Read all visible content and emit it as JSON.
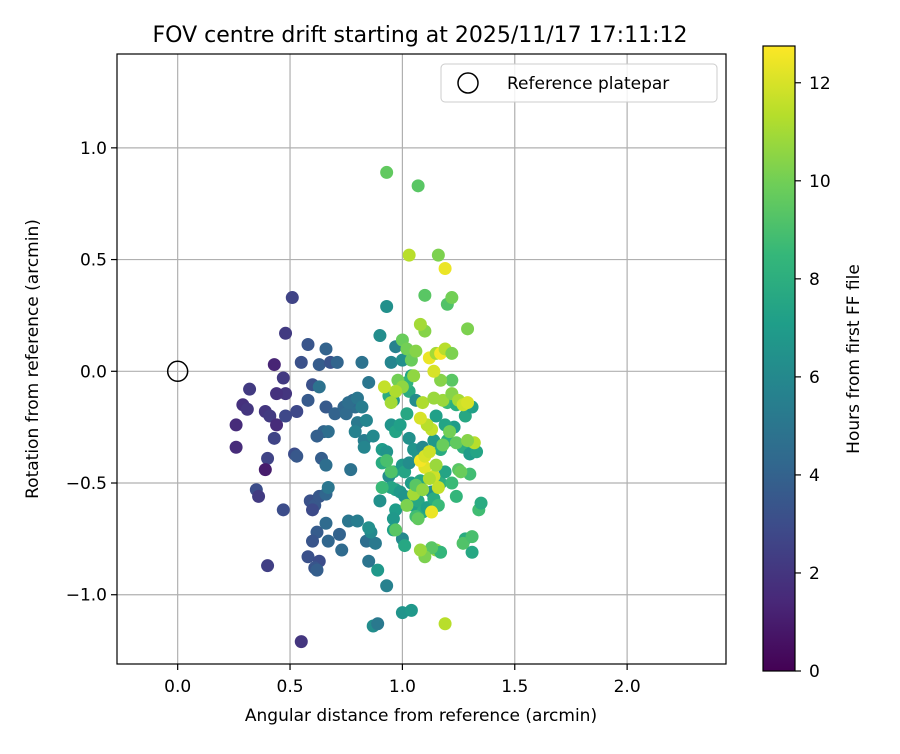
{
  "chart_data": {
    "type": "scatter",
    "title": "FOV centre drift starting at 2025/11/17 17:11:12",
    "xlabel": "Angular distance from reference (arcmin)",
    "ylabel": "Rotation from reference (arcmin)",
    "xlim": [
      -0.27,
      2.44
    ],
    "ylim": [
      -1.31,
      1.42
    ],
    "xticks": [
      0.0,
      0.5,
      1.0,
      1.5,
      2.0
    ],
    "xtick_labels": [
      "0.0",
      "0.5",
      "1.0",
      "1.5",
      "2.0"
    ],
    "yticks": [
      -1.0,
      -0.5,
      0.0,
      0.5,
      1.0
    ],
    "ytick_labels": [
      "−1.0",
      "−0.5",
      "0.0",
      "0.5",
      "1.0"
    ],
    "grid": true,
    "legend": {
      "position": "top-right",
      "entries": [
        "Reference platepar"
      ]
    },
    "reference_point": {
      "x": 0.0,
      "y": 0.0
    },
    "colorbar": {
      "label": "Hours from first FF file",
      "min": 0,
      "max": 12.75,
      "ticks": [
        0,
        2,
        4,
        6,
        8,
        10,
        12
      ],
      "colormap": "viridis"
    },
    "colormap_stops": [
      "#440154",
      "#482878",
      "#3e4989",
      "#31688e",
      "#26828e",
      "#1f9e89",
      "#35b779",
      "#6ece58",
      "#b5de2b",
      "#fde725"
    ],
    "ref_marker_color": "#000000",
    "points": [
      [
        0.51,
        0.33,
        2.6
      ],
      [
        0.48,
        0.17,
        2.2
      ],
      [
        0.43,
        0.03,
        1.3
      ],
      [
        0.47,
        -0.03,
        2.2
      ],
      [
        0.48,
        -0.1,
        2.0
      ],
      [
        0.44,
        -0.1,
        1.8
      ],
      [
        0.32,
        -0.08,
        2.2
      ],
      [
        0.29,
        -0.15,
        1.8
      ],
      [
        0.31,
        -0.17,
        2.0
      ],
      [
        0.26,
        -0.24,
        1.6
      ],
      [
        0.26,
        -0.34,
        1.6
      ],
      [
        0.39,
        -0.18,
        2.0
      ],
      [
        0.41,
        -0.2,
        2.2
      ],
      [
        0.44,
        -0.24,
        1.6
      ],
      [
        0.43,
        -0.3,
        2.6
      ],
      [
        0.48,
        -0.2,
        2.8
      ],
      [
        0.53,
        -0.18,
        2.8
      ],
      [
        0.4,
        -0.39,
        2.6
      ],
      [
        0.39,
        -0.44,
        1.0
      ],
      [
        0.35,
        -0.53,
        3.0
      ],
      [
        0.36,
        -0.56,
        2.2
      ],
      [
        0.47,
        -0.62,
        3.0
      ],
      [
        0.4,
        -0.87,
        2.4
      ],
      [
        0.55,
        -1.21,
        2.0
      ],
      [
        0.52,
        -0.37,
        3.0
      ],
      [
        0.53,
        -0.38,
        3.5
      ],
      [
        0.55,
        0.04,
        3.2
      ],
      [
        0.58,
        0.12,
        3.4
      ],
      [
        0.6,
        -0.06,
        3.2
      ],
      [
        0.63,
        0.03,
        3.7
      ],
      [
        0.66,
        0.1,
        4.0
      ],
      [
        0.68,
        0.04,
        3.3
      ],
      [
        0.71,
        0.04,
        4.1
      ],
      [
        0.63,
        -0.07,
        4.8
      ],
      [
        0.58,
        -0.13,
        3.6
      ],
      [
        0.66,
        -0.16,
        3.6
      ],
      [
        0.7,
        -0.19,
        4.0
      ],
      [
        0.65,
        -0.27,
        4.1
      ],
      [
        0.67,
        -0.27,
        4.6
      ],
      [
        0.62,
        -0.29,
        3.9
      ],
      [
        0.64,
        -0.39,
        3.8
      ],
      [
        0.66,
        -0.42,
        4.6
      ],
      [
        0.59,
        -0.58,
        3.2
      ],
      [
        0.61,
        -0.6,
        3.5
      ],
      [
        0.6,
        -0.62,
        2.9
      ],
      [
        0.63,
        -0.56,
        3.5
      ],
      [
        0.66,
        -0.55,
        4.2
      ],
      [
        0.67,
        -0.52,
        5.0
      ],
      [
        0.62,
        -0.72,
        3.7
      ],
      [
        0.6,
        -0.76,
        3.4
      ],
      [
        0.58,
        -0.83,
        3.2
      ],
      [
        0.63,
        -0.85,
        3.0
      ],
      [
        0.61,
        -0.88,
        3.4
      ],
      [
        0.62,
        -0.89,
        3.8
      ],
      [
        0.66,
        -0.68,
        4.4
      ],
      [
        0.67,
        -0.76,
        4.2
      ],
      [
        0.72,
        -0.73,
        4.0
      ],
      [
        0.73,
        -0.8,
        4.4
      ],
      [
        0.76,
        -0.67,
        5.0
      ],
      [
        0.8,
        -0.67,
        5.4
      ],
      [
        0.79,
        -0.16,
        4.6
      ],
      [
        0.78,
        -0.13,
        4.2
      ],
      [
        0.74,
        -0.16,
        4.2
      ],
      [
        0.75,
        -0.19,
        4.4
      ],
      [
        0.76,
        -0.14,
        4.6
      ],
      [
        0.8,
        -0.12,
        5.0
      ],
      [
        0.82,
        -0.16,
        5.4
      ],
      [
        0.8,
        -0.23,
        5.2
      ],
      [
        0.84,
        -0.22,
        5.8
      ],
      [
        0.79,
        -0.27,
        5.6
      ],
      [
        0.83,
        -0.31,
        5.4
      ],
      [
        0.83,
        -0.34,
        5.8
      ],
      [
        0.87,
        -0.29,
        6.0
      ],
      [
        0.85,
        -0.05,
        5.0
      ],
      [
        0.82,
        0.04,
        4.8
      ],
      [
        0.77,
        -0.44,
        4.8
      ],
      [
        0.84,
        -0.76,
        4.6
      ],
      [
        0.85,
        -0.85,
        4.9
      ],
      [
        0.88,
        -0.77,
        5.2
      ],
      [
        0.86,
        -0.72,
        6.0
      ],
      [
        0.85,
        -0.7,
        6.3
      ],
      [
        0.89,
        -0.89,
        6.8
      ],
      [
        0.87,
        -1.14,
        6.2
      ],
      [
        0.89,
        -1.13,
        5.2
      ],
      [
        0.93,
        -0.96,
        5.6
      ],
      [
        0.9,
        0.16,
        6.2
      ],
      [
        0.93,
        0.29,
        6.4
      ],
      [
        0.95,
        0.04,
        5.8
      ],
      [
        0.97,
        0.11,
        5.6
      ],
      [
        1.0,
        0.05,
        6.3
      ],
      [
        0.94,
        -0.11,
        7.8
      ],
      [
        0.96,
        -0.13,
        6.8
      ],
      [
        0.95,
        -0.24,
        6.6
      ],
      [
        0.97,
        -0.27,
        7.4
      ],
      [
        0.99,
        -0.24,
        7.2
      ],
      [
        0.91,
        -0.35,
        7.0
      ],
      [
        0.93,
        -0.36,
        6.6
      ],
      [
        0.91,
        -0.41,
        7.8
      ],
      [
        0.96,
        -0.45,
        7.6
      ],
      [
        0.94,
        -0.47,
        6.2
      ],
      [
        1.0,
        -0.42,
        6.8
      ],
      [
        1.01,
        -0.45,
        7.4
      ],
      [
        0.97,
        -0.53,
        7.2
      ],
      [
        0.9,
        -0.58,
        6.4
      ],
      [
        0.95,
        -0.52,
        7.4
      ],
      [
        0.97,
        -0.62,
        7.0
      ],
      [
        0.99,
        -0.54,
        6.8
      ],
      [
        1.01,
        -0.56,
        6.6
      ],
      [
        0.96,
        -0.66,
        6.8
      ],
      [
        0.96,
        -0.71,
        7.2
      ],
      [
        1.0,
        -0.75,
        6.0
      ],
      [
        1.01,
        -0.78,
        7.6
      ],
      [
        1.0,
        -1.08,
        6.6
      ],
      [
        1.04,
        -1.07,
        6.8
      ],
      [
        1.03,
        -0.41,
        6.2
      ],
      [
        1.02,
        -0.19,
        7.6
      ],
      [
        1.03,
        -0.09,
        7.8
      ],
      [
        1.06,
        -0.13,
        6.2
      ],
      [
        1.04,
        -0.02,
        7.4
      ],
      [
        1.02,
        -0.05,
        8.2
      ],
      [
        1.03,
        -0.3,
        6.4
      ],
      [
        1.05,
        -0.35,
        6.6
      ],
      [
        1.07,
        -0.37,
        6.6
      ],
      [
        1.09,
        -0.34,
        6.0
      ],
      [
        1.04,
        -0.5,
        7.0
      ],
      [
        1.06,
        -0.52,
        8.2
      ],
      [
        1.08,
        -0.49,
        7.6
      ],
      [
        1.09,
        -0.53,
        8.0
      ],
      [
        1.05,
        -0.6,
        7.2
      ],
      [
        1.07,
        -0.58,
        7.6
      ],
      [
        1.09,
        -0.63,
        7.8
      ],
      [
        1.06,
        -0.65,
        8.8
      ],
      [
        1.07,
        -0.66,
        9.6
      ],
      [
        1.11,
        -0.61,
        7.2
      ],
      [
        1.13,
        -0.54,
        6.4
      ],
      [
        1.14,
        -0.57,
        7.8
      ],
      [
        1.16,
        -0.6,
        8.6
      ],
      [
        1.17,
        -0.5,
        8.0
      ],
      [
        1.19,
        -0.45,
        7.4
      ],
      [
        1.22,
        -0.5,
        8.6
      ],
      [
        1.17,
        -0.35,
        7.8
      ],
      [
        1.2,
        -0.31,
        8.0
      ],
      [
        1.23,
        -0.25,
        7.0
      ],
      [
        1.19,
        -0.24,
        7.4
      ],
      [
        1.14,
        -0.31,
        6.8
      ],
      [
        1.15,
        -0.2,
        7.2
      ],
      [
        1.2,
        -0.14,
        8.6
      ],
      [
        1.24,
        -0.15,
        8.0
      ],
      [
        1.28,
        -0.2,
        7.6
      ],
      [
        1.31,
        -0.16,
        7.2
      ],
      [
        1.27,
        -0.34,
        8.0
      ],
      [
        1.3,
        -0.37,
        7.0
      ],
      [
        1.33,
        -0.36,
        7.4
      ],
      [
        1.25,
        -0.44,
        9.4
      ],
      [
        1.3,
        -0.46,
        8.8
      ],
      [
        1.28,
        -0.75,
        7.8
      ],
      [
        1.31,
        -0.81,
        7.6
      ],
      [
        1.27,
        -0.77,
        9.2
      ],
      [
        1.24,
        -0.56,
        8.4
      ],
      [
        1.34,
        -0.62,
        8.8
      ],
      [
        1.35,
        -0.59,
        7.8
      ],
      [
        1.15,
        -0.8,
        10.6
      ],
      [
        1.17,
        -0.81,
        8.4
      ],
      [
        1.13,
        -0.79,
        9.4
      ],
      [
        1.1,
        -0.83,
        10.2
      ],
      [
        1.08,
        -0.8,
        10.8
      ],
      [
        1.19,
        -1.13,
        11.4
      ],
      [
        1.13,
        -0.63,
        12.4
      ],
      [
        1.16,
        -0.52,
        11.6
      ],
      [
        1.14,
        -0.47,
        11.8
      ],
      [
        1.1,
        -0.43,
        12.2
      ],
      [
        1.08,
        -0.4,
        12.6
      ],
      [
        1.1,
        -0.38,
        12.0
      ],
      [
        1.12,
        -0.36,
        11.8
      ],
      [
        1.13,
        -0.26,
        11.6
      ],
      [
        1.11,
        -0.24,
        11.4
      ],
      [
        1.08,
        -0.21,
        12.0
      ],
      [
        1.09,
        -0.14,
        11.2
      ],
      [
        1.14,
        -0.12,
        10.8
      ],
      [
        1.18,
        -0.13,
        10.8
      ],
      [
        1.22,
        -0.1,
        10.4
      ],
      [
        1.25,
        -0.13,
        11.0
      ],
      [
        1.27,
        -0.15,
        11.8
      ],
      [
        1.29,
        -0.14,
        12.0
      ],
      [
        1.22,
        -0.04,
        9.4
      ],
      [
        1.17,
        -0.04,
        10.4
      ],
      [
        1.14,
        0.0,
        12.0
      ],
      [
        1.12,
        0.06,
        12.4
      ],
      [
        1.15,
        0.08,
        11.0
      ],
      [
        1.17,
        0.08,
        12.6
      ],
      [
        1.19,
        0.1,
        11.4
      ],
      [
        1.22,
        0.08,
        10.2
      ],
      [
        1.29,
        0.19,
        10.2
      ],
      [
        1.1,
        0.18,
        10.4
      ],
      [
        1.08,
        0.21,
        11.0
      ],
      [
        1.0,
        0.14,
        9.8
      ],
      [
        1.02,
        0.1,
        10.0
      ],
      [
        1.04,
        0.05,
        9.8
      ],
      [
        1.06,
        0.09,
        10.4
      ],
      [
        1.05,
        -0.02,
        10.6
      ],
      [
        0.98,
        -0.04,
        10.0
      ],
      [
        1.0,
        -0.07,
        10.6
      ],
      [
        0.97,
        -0.09,
        11.2
      ],
      [
        0.95,
        -0.14,
        11.0
      ],
      [
        0.92,
        -0.07,
        11.6
      ],
      [
        1.03,
        0.52,
        11.4
      ],
      [
        1.16,
        0.52,
        10.2
      ],
      [
        1.19,
        0.46,
        12.4
      ],
      [
        1.1,
        0.34,
        9.4
      ],
      [
        1.2,
        0.3,
        9.2
      ],
      [
        1.22,
        0.33,
        10.0
      ],
      [
        0.93,
        0.89,
        9.6
      ],
      [
        1.07,
        0.83,
        9.4
      ],
      [
        0.91,
        -0.52,
        8.6
      ],
      [
        0.95,
        -0.45,
        9.2
      ],
      [
        0.93,
        -0.4,
        9.0
      ],
      [
        0.97,
        -0.71,
        9.4
      ],
      [
        1.02,
        -0.6,
        10.2
      ],
      [
        1.05,
        -0.55,
        11.0
      ],
      [
        1.06,
        -0.51,
        9.4
      ],
      [
        1.09,
        -0.53,
        10.6
      ],
      [
        1.12,
        -0.48,
        11.2
      ],
      [
        1.15,
        -0.42,
        10.8
      ],
      [
        1.18,
        -0.33,
        9.8
      ],
      [
        1.21,
        -0.27,
        10.0
      ],
      [
        1.24,
        -0.32,
        9.6
      ],
      [
        1.32,
        -0.32,
        11.4
      ],
      [
        1.29,
        -0.31,
        10.4
      ],
      [
        1.26,
        -0.45,
        9.8
      ],
      [
        1.31,
        -0.74,
        9.0
      ]
    ]
  }
}
